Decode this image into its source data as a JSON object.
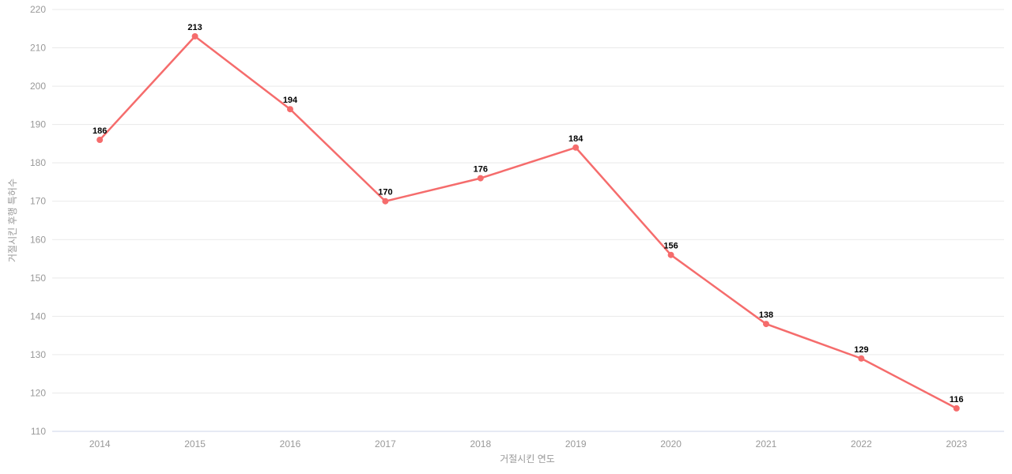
{
  "chart_data": {
    "type": "line",
    "title": "",
    "xlabel": "거절시킨 연도",
    "ylabel": "거절시킨 후행 특허수",
    "categories": [
      "2014",
      "2015",
      "2016",
      "2017",
      "2018",
      "2019",
      "2020",
      "2021",
      "2022",
      "2023"
    ],
    "values": [
      186,
      213,
      194,
      170,
      176,
      184,
      156,
      138,
      129,
      116
    ],
    "point_labels": [
      "186",
      "213",
      "194",
      "170",
      "176",
      "184",
      "156",
      "138",
      "129",
      "116"
    ],
    "y_ticks": [
      "110",
      "120",
      "130",
      "140",
      "150",
      "160",
      "170",
      "180",
      "190",
      "200",
      "210",
      "220"
    ],
    "ylim": [
      110,
      220
    ],
    "ytick_step": 10,
    "grid": true,
    "legend": "none",
    "colors": {
      "line": "#f56c6c",
      "marker": "#f56c6c",
      "grid": "#e9e9e9",
      "axis_line": "#ccd4e8",
      "tick_text": "#999999",
      "point_label": "#000000",
      "background": "#ffffff"
    }
  }
}
